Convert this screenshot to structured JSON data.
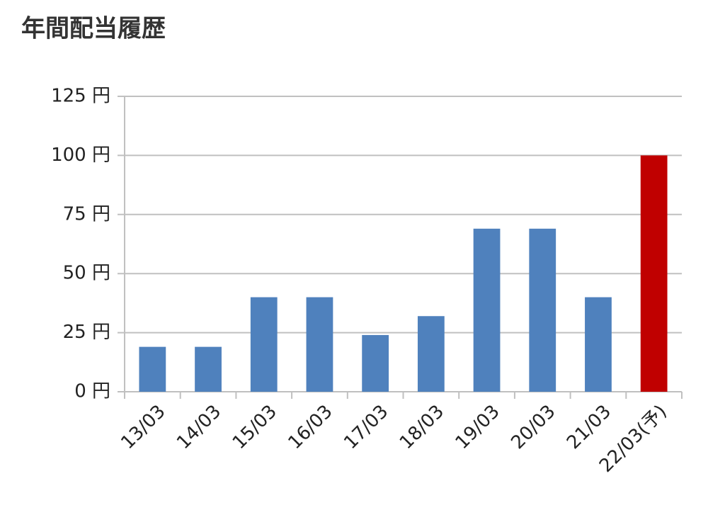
{
  "chart_data": {
    "type": "bar",
    "title": "年間配当履歴",
    "categories": [
      "13/03",
      "14/03",
      "15/03",
      "16/03",
      "17/03",
      "18/03",
      "19/03",
      "20/03",
      "21/03",
      "22/03(予)"
    ],
    "values": [
      19,
      19,
      40,
      40,
      24,
      32,
      69,
      69,
      40,
      100
    ],
    "colors": [
      "#4f81bd",
      "#4f81bd",
      "#4f81bd",
      "#4f81bd",
      "#4f81bd",
      "#4f81bd",
      "#4f81bd",
      "#4f81bd",
      "#4f81bd",
      "#c00000"
    ],
    "ylim": [
      0,
      125
    ],
    "yticks": [
      {
        "value": 0,
        "label": "0 円"
      },
      {
        "value": 25,
        "label": "25 円"
      },
      {
        "value": 50,
        "label": "50 円"
      },
      {
        "value": 75,
        "label": "75 円"
      },
      {
        "value": 100,
        "label": "100 円"
      },
      {
        "value": 125,
        "label": "125 円"
      }
    ],
    "grid": true
  }
}
